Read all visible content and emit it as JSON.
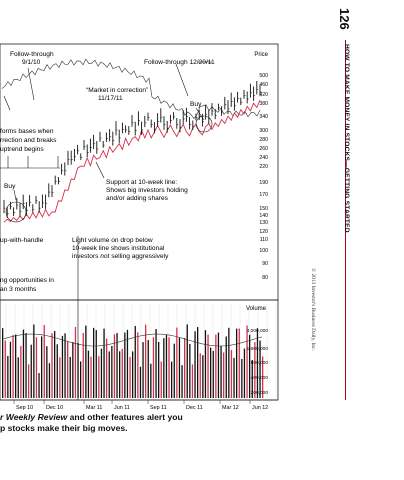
{
  "header": {
    "page_number": "126",
    "running_head": "HOW TO MAKE MONEY IN STOCKS—GETTING STARTED"
  },
  "copyright": "© 2013 Investor's Business Daily, Inc.",
  "annotations": {
    "follow_through_1": [
      "Follow-through",
      "9/1/10"
    ],
    "follow_through_2": "Follow-through 12/20/11",
    "market_correction": [
      "“Market in correction”",
      "11/17/11"
    ],
    "buy_right": "Buy",
    "forms_bases": [
      "forms bases when",
      "rrection and breaks",
      "uptrend begins"
    ],
    "buy_left": "Buy",
    "support": [
      "Support at 10-week line:",
      "Shows big investors holding",
      "and/or adding shares"
    ],
    "cup_handle": "up-with-handle",
    "light_volume": [
      "Light volume on drop below",
      "10-week line shows institutional",
      "investors not selling aggressively"
    ],
    "opportunities": [
      "ng opportunities in",
      "an 3 months"
    ]
  },
  "price_axis": {
    "title": "Price",
    "ticks": [
      "500",
      "460",
      "420",
      "380",
      "340",
      "300",
      "280",
      "260",
      "240",
      "220",
      "190",
      "170",
      "150",
      "140",
      "130",
      "120",
      "110",
      "100",
      "90",
      "80"
    ]
  },
  "volume_axis": {
    "title": "Volume",
    "ticks": [
      "4,000,000",
      "1,600,000",
      "800,000",
      "400,000",
      "200,000"
    ]
  },
  "x_axis": {
    "labels": [
      "Sep 10",
      "Dec 10",
      "Mar 11",
      "Jun 11",
      "Sep 11",
      "Dec 11",
      "Mar 12",
      "Jun 12"
    ]
  },
  "caption": {
    "line1_em": "r Weekly Review",
    "line1_rest": " and other features alert you",
    "line2": "p stocks make their big moves."
  },
  "colors": {
    "moving_average": "#d9304a",
    "volume_up": "#111111",
    "volume_down": "#d9304a",
    "accent_rule": "#b00020"
  },
  "chart_data": {
    "type": "line",
    "note_series": [
      {
        "name": "Price",
        "y_scale": "log"
      },
      {
        "name": "Volume"
      }
    ],
    "x": [
      "Sep 10",
      "Dec 10",
      "Mar 11",
      "Jun 11",
      "Sep 11",
      "Dec 11",
      "Mar 12",
      "Jun 12"
    ],
    "ylim": [
      80,
      500
    ]
  }
}
